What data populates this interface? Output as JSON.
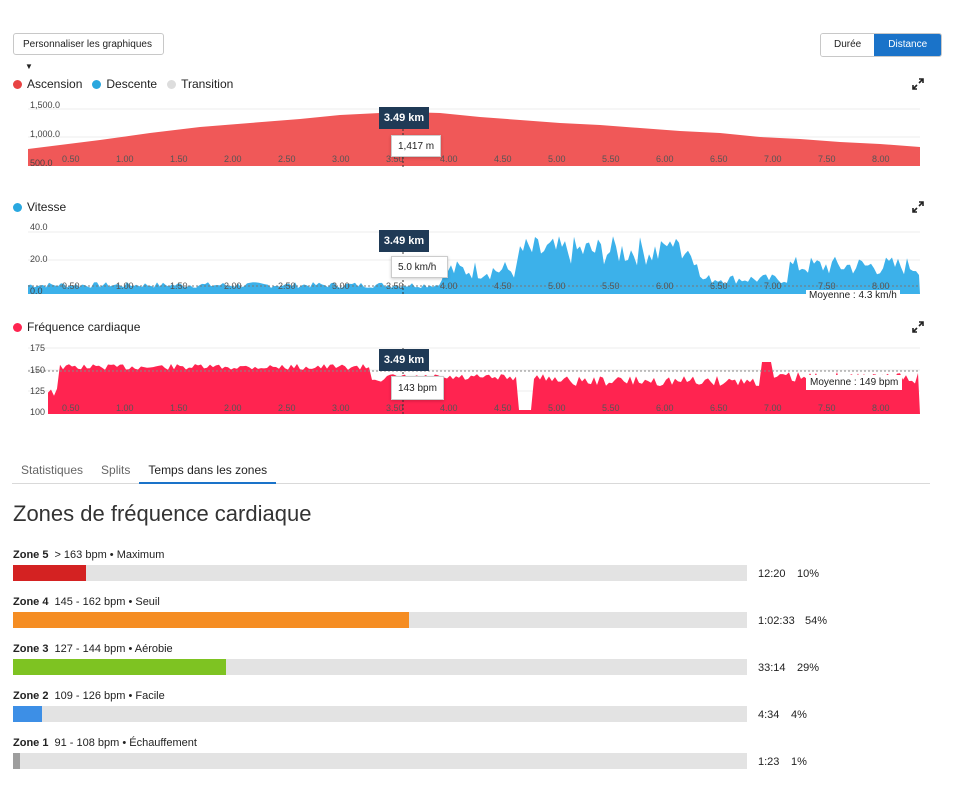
{
  "toolbar": {
    "customize_label": "Personnaliser les graphiques",
    "toggle": [
      {
        "label": "Durée",
        "active": false
      },
      {
        "label": "Distance",
        "active": true
      }
    ]
  },
  "colors": {
    "elevation": "#f05858",
    "descent": "#29a8e0",
    "transition": "#e0e0e0",
    "speed": "#3cb1ea",
    "heart": "#ff2450",
    "accent": "#1a73c9",
    "tooltip_dark": "#1f3a56"
  },
  "icons": {
    "expand": "expand-icon",
    "caret": "caret-down-icon"
  },
  "elevation_chart": {
    "legend": [
      {
        "label": "Ascension",
        "color": "#e84343"
      },
      {
        "label": "Descente",
        "color": "#2aa7de"
      },
      {
        "label": "Transition",
        "color": "#dddddd"
      }
    ],
    "y_ticks": [
      "1,500.0",
      "1,000.0",
      "500.0"
    ],
    "x_ticks": [
      "0.50",
      "1.00",
      "1.50",
      "2.00",
      "2.50",
      "3.00",
      "3.50",
      "4.00",
      "4.50",
      "5.00",
      "5.50",
      "6.00",
      "6.50",
      "7.00",
      "7.50",
      "8.00"
    ],
    "cursor_label": "3.49 km",
    "tooltip_value": "1,417 m"
  },
  "speed_chart": {
    "legend_label": "Vitesse",
    "legend_color": "#29a8e0",
    "y_ticks": [
      "40.0",
      "20.0",
      "0.0"
    ],
    "x_ticks": [
      "0.50",
      "1.00",
      "1.50",
      "2.00",
      "2.50",
      "3.00",
      "3.50",
      "4.00",
      "4.50",
      "5.00",
      "5.50",
      "6.00",
      "6.50",
      "7.00",
      "7.50",
      "8.00"
    ],
    "cursor_label": "3.49 km",
    "tooltip_value": "5.0 km/h",
    "average_label": "Moyenne : 4.3 km/h"
  },
  "heart_chart": {
    "legend_label": "Fréquence cardiaque",
    "legend_color": "#ff2450",
    "y_ticks": [
      "175",
      "150",
      "125",
      "100"
    ],
    "x_ticks": [
      "0.50",
      "1.00",
      "1.50",
      "2.00",
      "2.50",
      "3.00",
      "3.50",
      "4.00",
      "4.50",
      "5.00",
      "5.50",
      "6.00",
      "6.50",
      "7.00",
      "7.50",
      "8.00"
    ],
    "cursor_label": "3.49 km",
    "tooltip_value": "143 bpm",
    "average_label": "Moyenne : 149 bpm"
  },
  "tabs": [
    {
      "label": "Statistiques",
      "active": false
    },
    {
      "label": "Splits",
      "active": false
    },
    {
      "label": "Temps dans les zones",
      "active": true
    }
  ],
  "zones_title": "Zones de fréquence cardiaque",
  "zones": [
    {
      "name": "Zone 5",
      "range": "> 163 bpm • Maximum",
      "time": "12:20",
      "pct": "10%",
      "fraction": 0.1,
      "color": "#d42222"
    },
    {
      "name": "Zone 4",
      "range": "145 - 162 bpm • Seuil",
      "time": "1:02:33",
      "pct": "54%",
      "fraction": 0.54,
      "color": "#f58d23"
    },
    {
      "name": "Zone 3",
      "range": "127 - 144 bpm • Aérobie",
      "time": "33:14",
      "pct": "29%",
      "fraction": 0.29,
      "color": "#7ec322"
    },
    {
      "name": "Zone 2",
      "range": "109 - 126 bpm • Facile",
      "time": "4:34",
      "pct": "4%",
      "fraction": 0.04,
      "color": "#3d8fe6"
    },
    {
      "name": "Zone 1",
      "range": "91 - 108 bpm • Échauffement",
      "time": "1:23",
      "pct": "1%",
      "fraction": 0.01,
      "color": "#9e9e9e"
    }
  ]
}
